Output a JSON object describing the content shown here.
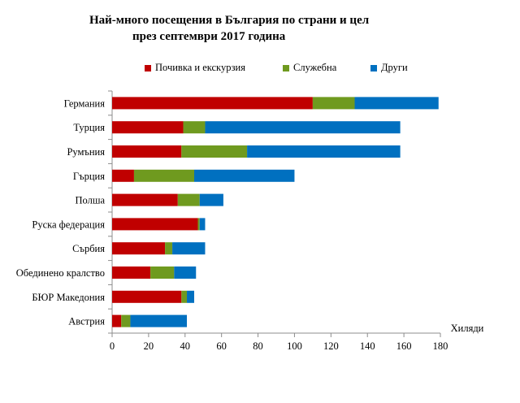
{
  "chart_data": {
    "type": "bar",
    "orientation": "horizontal",
    "stacked": true,
    "title": "Най-много посещения в България по страни и цел",
    "subtitle": "през септември 2017 година",
    "xlabel": "Хиляди",
    "ylabel": "",
    "xlim": [
      0,
      180
    ],
    "x_ticks": [
      "0",
      "20",
      "40",
      "60",
      "80",
      "100",
      "120",
      "140",
      "160",
      "180"
    ],
    "grid": false,
    "legend_position": "top",
    "categories": [
      "Германия",
      "Турция",
      "Румъния",
      "Гърция",
      "Полша",
      "Руска федерация",
      "Сърбия",
      "Обединено кралство",
      "БЮР Македония",
      "Австрия"
    ],
    "series": [
      {
        "name": "Почивка и екскурзия",
        "color": "#c00000",
        "values": [
          110,
          39,
          38,
          12,
          36,
          47,
          29,
          21,
          38,
          5
        ]
      },
      {
        "name": "Служебна",
        "color": "#6f9a1f",
        "values": [
          23,
          12,
          36,
          33,
          12,
          1,
          4,
          13,
          3,
          5
        ]
      },
      {
        "name": "Други",
        "color": "#0070c0",
        "values": [
          46,
          107,
          84,
          55,
          13,
          3,
          18,
          12,
          4,
          31
        ]
      }
    ]
  }
}
